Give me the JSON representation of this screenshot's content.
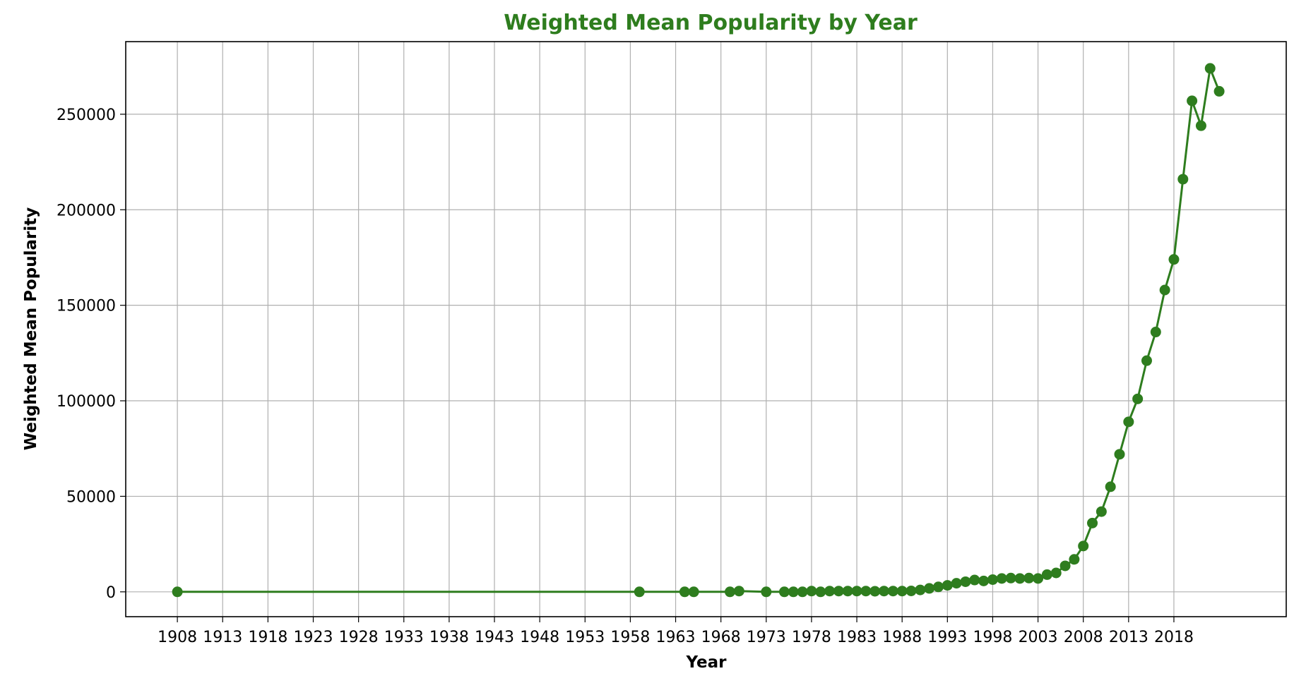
{
  "chart_data": {
    "type": "line",
    "title": "Weighted Mean Popularity by Year",
    "xlabel": "Year",
    "ylabel": "Weighted Mean Popularity",
    "xlim": [
      1902.3,
      2030.4
    ],
    "ylim": [
      -13000,
      288000
    ],
    "xticks": [
      1908,
      1913,
      1918,
      1923,
      1928,
      1933,
      1938,
      1943,
      1948,
      1953,
      1958,
      1963,
      1968,
      1973,
      1978,
      1983,
      1988,
      1993,
      1998,
      2003,
      2008,
      2013,
      2018
    ],
    "yticks": [
      0,
      50000,
      100000,
      150000,
      200000,
      250000
    ],
    "grid": true,
    "legend": "none",
    "color": "#2e7d1e",
    "series": [
      {
        "x": [
          1908,
          1959,
          1964,
          1965,
          1969,
          1970,
          1973,
          1975,
          1976,
          1977,
          1978,
          1979,
          1980,
          1981,
          1982,
          1983,
          1984,
          1985,
          1986,
          1987,
          1988,
          1989,
          1990,
          1991,
          1992,
          1993,
          1994,
          1995,
          1996,
          1997,
          1998,
          1999,
          2000,
          2001,
          2002,
          2003,
          2004,
          2005,
          2006,
          2007,
          2008,
          2009,
          2010,
          2011,
          2012,
          2013,
          2014,
          2015,
          2016,
          2017,
          2018,
          2019,
          2020,
          2021,
          2022,
          2023
        ],
        "y": [
          0,
          0,
          0,
          0,
          0,
          400,
          0,
          0,
          0,
          0,
          400,
          0,
          400,
          400,
          400,
          400,
          400,
          300,
          400,
          400,
          400,
          500,
          1000,
          1800,
          2600,
          3400,
          4500,
          5300,
          6200,
          5700,
          6400,
          7000,
          7200,
          7000,
          7200,
          7000,
          9000,
          9900,
          13600,
          17000,
          24000,
          36000,
          42000,
          55000,
          72000,
          89000,
          101000,
          121000,
          136000,
          158000,
          174000,
          216000,
          257000,
          244000,
          274000,
          262000
        ]
      }
    ]
  }
}
